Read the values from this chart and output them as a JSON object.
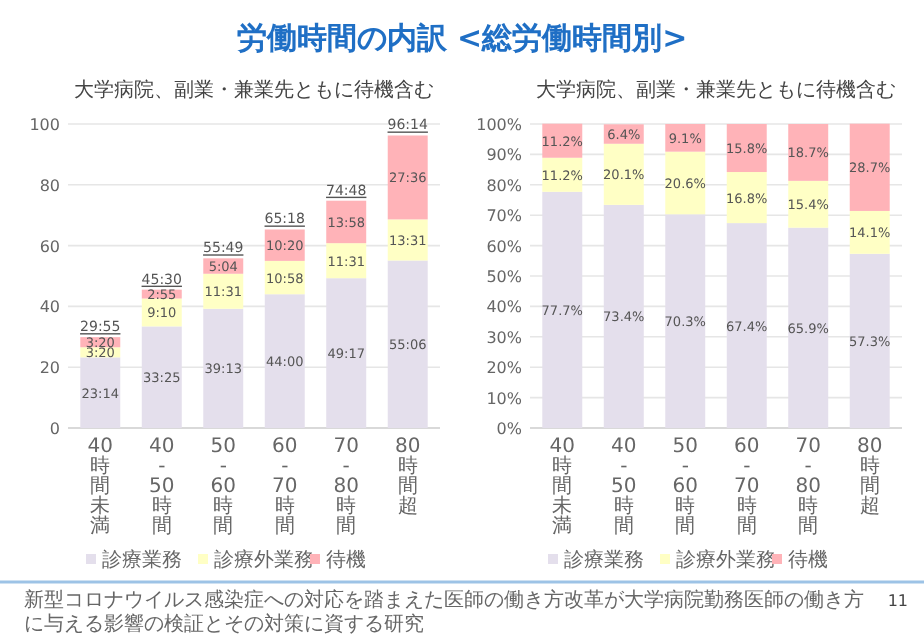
{
  "chart_data": [
    {
      "type": "other",
      "title": "労働時間の内訳 <総労働時間別>",
      "annotations": [
        "新型コロナウイルス感染症への対応を踏まえた医師の働き方改革が大学病院勤務医師の働き方に与える影響の検証とその対策に資する研究",
        "11"
      ]
    },
    {
      "type": "bar",
      "title": "大学病院、副業・兼業先ともに待機含む",
      "categories": [
        "40時間未満",
        "40-50時間",
        "50-60時間",
        "60-70時間",
        "70-80時間",
        "80時間超"
      ],
      "stacked": true,
      "ylim": [
        0,
        100
      ],
      "yticks": [
        0,
        20,
        40,
        60,
        80,
        100
      ],
      "grid": "y",
      "legend": "bottom",
      "series": [
        {
          "name": "診療業務",
          "color": "#e4dfec",
          "values": [
            23.23,
            33.42,
            39.22,
            44,
            49.28,
            55.1
          ],
          "value_labels": [
            "23:14",
            "33:25",
            "39:13",
            "44:00",
            "49:17",
            "55:06"
          ]
        },
        {
          "name": "診療外業務",
          "color": "#ffffc5",
          "values": [
            3.33,
            9.17,
            11.52,
            10.97,
            11.52,
            13.52
          ],
          "value_labels": [
            "3:20",
            "9:10",
            "11:31",
            "10:58",
            "11:31",
            "13:31"
          ]
        },
        {
          "name": "待機",
          "color": "#ffb3b8",
          "values": [
            3.33,
            2.92,
            5.07,
            10.33,
            13.97,
            27.6
          ],
          "value_labels": [
            "3:20",
            "2:55",
            "5:04",
            "10:20",
            "13:58",
            "27:36"
          ]
        }
      ],
      "totals": [
        "29:55",
        "45:30",
        "55:49",
        "65:18",
        "74:48",
        "96:14"
      ]
    },
    {
      "type": "bar",
      "title": "大学病院、副業・兼業先ともに待機含む",
      "categories": [
        "40時間未満",
        "40-50時間",
        "50-60時間",
        "60-70時間",
        "70-80時間",
        "80時間超"
      ],
      "stacked": true,
      "ylim": [
        0,
        100
      ],
      "yticks": [
        {
          "value": 0,
          "label": "0%"
        },
        {
          "value": 10,
          "label": "10%"
        },
        {
          "value": 20,
          "label": "20%"
        },
        {
          "value": 30,
          "label": "30%"
        },
        {
          "value": 40,
          "label": "40%"
        },
        {
          "value": 50,
          "label": "50%"
        },
        {
          "value": 60,
          "label": "60%"
        },
        {
          "value": 70,
          "label": "70%"
        },
        {
          "value": 80,
          "label": "80%"
        },
        {
          "value": 90,
          "label": "90%"
        },
        {
          "value": 100,
          "label": "100%"
        }
      ],
      "grid": "y",
      "legend": "bottom",
      "series": [
        {
          "name": "診療業務",
          "color": "#e4dfec",
          "values": [
            77.7,
            73.4,
            70.3,
            67.4,
            65.9,
            57.3
          ],
          "value_labels": [
            "77.7%",
            "73.4%",
            "70.3%",
            "67.4%",
            "65.9%",
            "57.3%"
          ]
        },
        {
          "name": "診療外業務",
          "color": "#ffffc5",
          "values": [
            11.2,
            20.1,
            20.6,
            16.8,
            15.4,
            14.1
          ],
          "value_labels": [
            "11.2%",
            "20.1%",
            "20.6%",
            "16.8%",
            "15.4%",
            "14.1%"
          ]
        },
        {
          "name": "待機",
          "color": "#ffb3b8",
          "values": [
            11.2,
            6.4,
            9.1,
            15.8,
            18.7,
            28.7
          ],
          "value_labels": [
            "11.2%",
            "6.4%",
            "9.1%",
            "15.8%",
            "18.7%",
            "28.7%"
          ]
        }
      ]
    }
  ]
}
